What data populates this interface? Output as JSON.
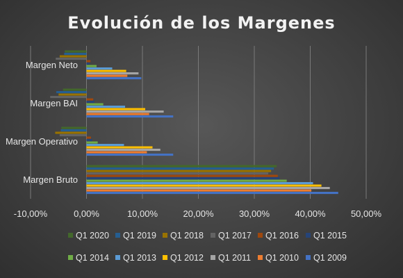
{
  "chart_data": {
    "type": "bar",
    "orientation": "horizontal",
    "title": "Evolución de los Margenes",
    "categories": [
      "Margen Bruto",
      "Margen Operativo",
      "Margen BAI",
      "Margen Neto"
    ],
    "xlim": [
      -10,
      50
    ],
    "x_ticks": [
      -10,
      0,
      10,
      20,
      30,
      40,
      50
    ],
    "x_tick_labels": [
      "-10,00%",
      "0,00%",
      "10,00%",
      "20,00%",
      "30,00%",
      "40,00%",
      "50,00%"
    ],
    "grid": true,
    "legend_position": "bottom",
    "series": [
      {
        "name": "Q1 2009",
        "color": "#4472c4",
        "values": [
          45.0,
          15.5,
          15.5,
          9.8
        ]
      },
      {
        "name": "Q1 2010",
        "color": "#ed7d31",
        "values": [
          40.2,
          10.8,
          11.2,
          7.3
        ]
      },
      {
        "name": "Q1 2011",
        "color": "#a5a5a5",
        "values": [
          43.5,
          13.2,
          13.8,
          9.3
        ]
      },
      {
        "name": "Q1 2012",
        "color": "#ffc000",
        "values": [
          42.0,
          11.8,
          10.5,
          7.1
        ]
      },
      {
        "name": "Q1 2013",
        "color": "#5b9bd5",
        "values": [
          40.5,
          6.7,
          6.9,
          4.6
        ]
      },
      {
        "name": "Q1 2014",
        "color": "#70ad47",
        "values": [
          35.8,
          2.0,
          3.0,
          1.8
        ]
      },
      {
        "name": "Q1 2015",
        "color": "#264478",
        "values": [
          34.5,
          1.0,
          1.4,
          0.6
        ]
      },
      {
        "name": "Q1 2016",
        "color": "#9e480e",
        "values": [
          34.2,
          0.8,
          1.2,
          0.7
        ]
      },
      {
        "name": "Q1 2017",
        "color": "#636363",
        "values": [
          32.5,
          -4.8,
          -6.5,
          -5.5
        ]
      },
      {
        "name": "Q1 2018",
        "color": "#997300",
        "values": [
          33.0,
          -5.6,
          -5.0,
          -4.8
        ]
      },
      {
        "name": "Q1 2019",
        "color": "#255e91",
        "values": [
          33.5,
          -4.6,
          -5.4,
          -4.0
        ]
      },
      {
        "name": "Q1 2020",
        "color": "#43682b",
        "values": [
          34.0,
          -4.5,
          -4.2,
          -3.9
        ]
      }
    ]
  }
}
